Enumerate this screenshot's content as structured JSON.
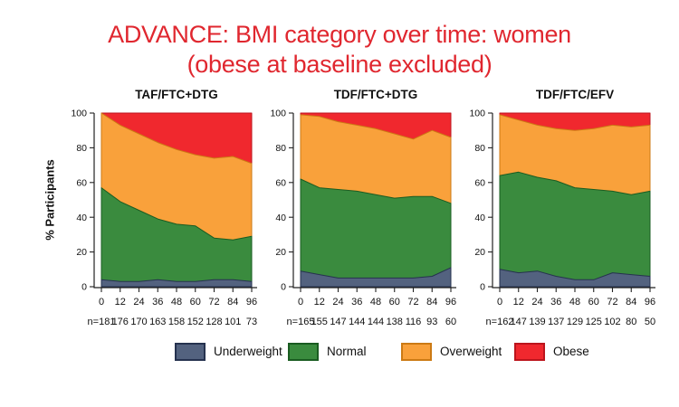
{
  "title": {
    "line1": "ADVANCE: BMI category over time: women",
    "line2": "(obese at baseline excluded)"
  },
  "ylabel": "% Participants",
  "labels": {
    "n_prefix": "n="
  },
  "colors": {
    "title_red": "#e0272f",
    "axis": "#222222",
    "text": "#111111"
  },
  "legend": {
    "position": "bottom",
    "items": [
      {
        "label": "Underweight",
        "fill": "#53627f",
        "stroke": "#26324f"
      },
      {
        "label": "Normal",
        "fill": "#3a8b3e",
        "stroke": "#1a5c21"
      },
      {
        "label": "Overweight",
        "fill": "#f9a13b",
        "stroke": "#cc7a14"
      },
      {
        "label": "Obese",
        "fill": "#f0282e",
        "stroke": "#bc151d"
      }
    ]
  },
  "chart_data": [
    {
      "type": "area",
      "stacked": true,
      "title": "TAF/FTC+DTG",
      "x": [
        0,
        12,
        24,
        36,
        48,
        60,
        72,
        84,
        96
      ],
      "n": [
        181,
        176,
        170,
        163,
        158,
        152,
        128,
        101,
        73
      ],
      "series": [
        {
          "name": "Underweight",
          "values": [
            4,
            3,
            3,
            4,
            3,
            3,
            4,
            4,
            3
          ]
        },
        {
          "name": "Normal",
          "values": [
            53,
            46,
            41,
            35,
            33,
            32,
            24,
            23,
            26
          ]
        },
        {
          "name": "Overweight",
          "values": [
            43,
            44,
            44,
            44,
            43,
            41,
            46,
            48,
            42
          ]
        },
        {
          "name": "Obese",
          "values": [
            0,
            7,
            12,
            17,
            21,
            24,
            26,
            25,
            29
          ]
        }
      ],
      "ylim": [
        0,
        100
      ],
      "yticks": [
        0,
        20,
        40,
        60,
        80,
        100
      ],
      "grid": false
    },
    {
      "type": "area",
      "stacked": true,
      "title": "TDF/FTC+DTG",
      "x": [
        0,
        12,
        24,
        36,
        48,
        60,
        72,
        84,
        96
      ],
      "n": [
        165,
        155,
        147,
        144,
        144,
        138,
        116,
        93,
        60
      ],
      "series": [
        {
          "name": "Underweight",
          "values": [
            9,
            7,
            5,
            5,
            5,
            5,
            5,
            6,
            11
          ]
        },
        {
          "name": "Normal",
          "values": [
            53,
            50,
            51,
            50,
            48,
            46,
            47,
            46,
            37
          ]
        },
        {
          "name": "Overweight",
          "values": [
            37,
            41,
            39,
            38,
            38,
            37,
            33,
            38,
            38
          ]
        },
        {
          "name": "Obese",
          "values": [
            1,
            2,
            5,
            7,
            9,
            12,
            15,
            10,
            14
          ]
        }
      ],
      "ylim": [
        0,
        100
      ],
      "yticks": [
        0,
        20,
        40,
        60,
        80,
        100
      ],
      "grid": false
    },
    {
      "type": "area",
      "stacked": true,
      "title": "TDF/FTC/EFV",
      "x": [
        0,
        12,
        24,
        36,
        48,
        60,
        72,
        84,
        96
      ],
      "n": [
        162,
        147,
        139,
        137,
        129,
        125,
        102,
        80,
        50
      ],
      "series": [
        {
          "name": "Underweight",
          "values": [
            10,
            8,
            9,
            6,
            4,
            4,
            8,
            7,
            6
          ]
        },
        {
          "name": "Normal",
          "values": [
            54,
            58,
            54,
            55,
            53,
            52,
            47,
            46,
            49
          ]
        },
        {
          "name": "Overweight",
          "values": [
            35,
            30,
            30,
            30,
            33,
            35,
            38,
            39,
            38
          ]
        },
        {
          "name": "Obese",
          "values": [
            1,
            4,
            7,
            9,
            10,
            9,
            7,
            8,
            7
          ]
        }
      ],
      "ylim": [
        0,
        100
      ],
      "yticks": [
        0,
        20,
        40,
        60,
        80,
        100
      ],
      "grid": false
    }
  ]
}
